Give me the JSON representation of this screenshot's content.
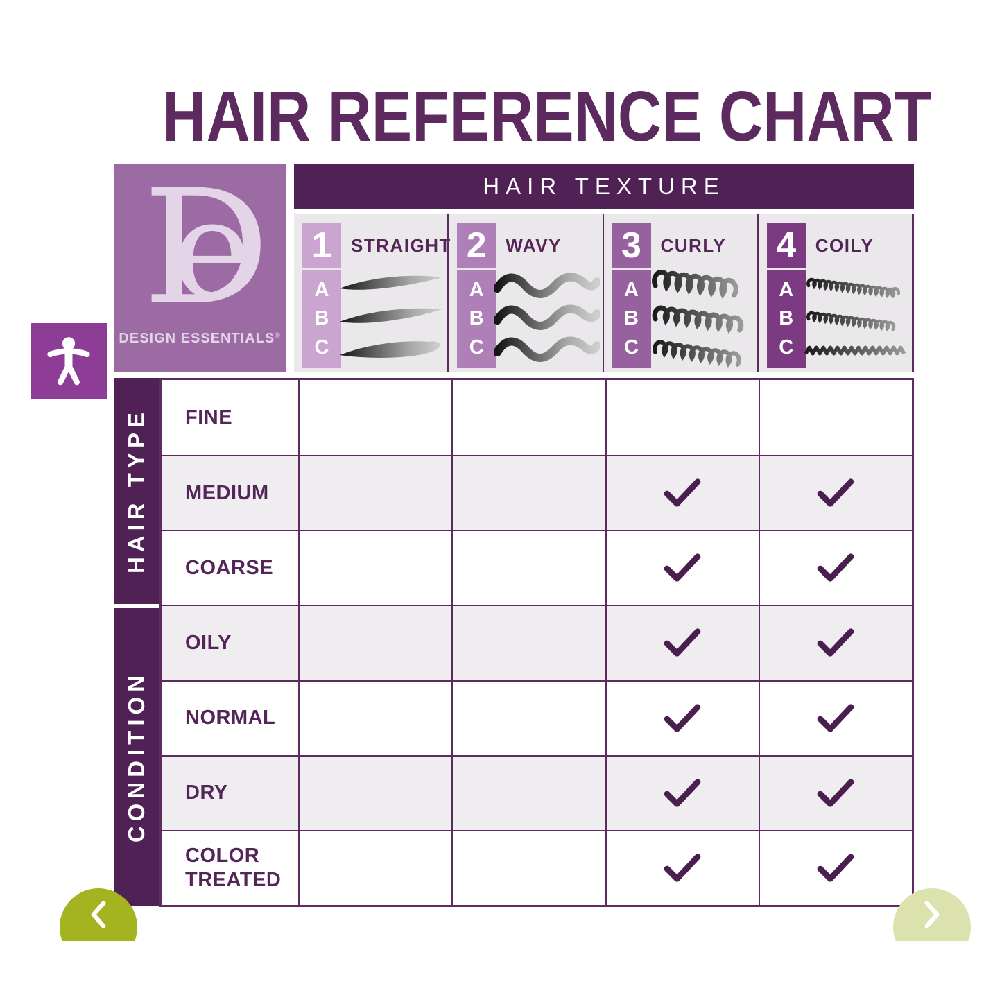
{
  "title": "HAIR REFERENCE CHART",
  "brand": {
    "monogram_d": "D",
    "monogram_e": "e",
    "name": "DESIGN ESSENTIALS",
    "registered": "®"
  },
  "table": {
    "header": "HAIR TEXTURE",
    "textures": [
      {
        "number": "1",
        "label": "STRAIGHT",
        "letters": [
          "A",
          "B",
          "C"
        ]
      },
      {
        "number": "2",
        "label": "WAVY",
        "letters": [
          "A",
          "B",
          "C"
        ]
      },
      {
        "number": "3",
        "label": "CURLY",
        "letters": [
          "A",
          "B",
          "C"
        ]
      },
      {
        "number": "4",
        "label": "COILY",
        "letters": [
          "A",
          "B",
          "C"
        ]
      }
    ],
    "groups": [
      {
        "label": "HAIR TYPE"
      },
      {
        "label": "CONDITION"
      }
    ],
    "rows": [
      {
        "label": "FINE",
        "group": "HAIR TYPE",
        "checks": [
          false,
          false,
          false,
          false
        ]
      },
      {
        "label": "MEDIUM",
        "group": "HAIR TYPE",
        "checks": [
          false,
          false,
          true,
          true
        ]
      },
      {
        "label": "COARSE",
        "group": "HAIR TYPE",
        "checks": [
          false,
          false,
          true,
          true
        ]
      },
      {
        "label": "OILY",
        "group": "CONDITION",
        "checks": [
          false,
          false,
          true,
          true
        ]
      },
      {
        "label": "NORMAL",
        "group": "CONDITION",
        "checks": [
          false,
          false,
          true,
          true
        ]
      },
      {
        "label": "DRY",
        "group": "CONDITION",
        "checks": [
          false,
          false,
          true,
          true
        ]
      },
      {
        "label": "COLOR TREATED",
        "group": "CONDITION",
        "checks": [
          false,
          false,
          true,
          true
        ]
      }
    ]
  },
  "chart_data": {
    "type": "table",
    "title": "HAIR REFERENCE CHART",
    "column_header_group": "HAIR TEXTURE",
    "columns": [
      "1 STRAIGHT (A/B/C)",
      "2 WAVY (A/B/C)",
      "3 CURLY (A/B/C)",
      "4 COILY (A/B/C)"
    ],
    "row_groups": [
      {
        "group": "HAIR TYPE",
        "rows": [
          "FINE",
          "MEDIUM",
          "COARSE"
        ]
      },
      {
        "group": "CONDITION",
        "rows": [
          "OILY",
          "NORMAL",
          "DRY",
          "COLOR TREATED"
        ]
      }
    ],
    "cells": [
      [
        false,
        false,
        false,
        false
      ],
      [
        false,
        false,
        true,
        true
      ],
      [
        false,
        false,
        true,
        true
      ],
      [
        false,
        false,
        true,
        true
      ],
      [
        false,
        false,
        true,
        true
      ],
      [
        false,
        false,
        true,
        true
      ],
      [
        false,
        false,
        true,
        true
      ]
    ],
    "cell_true_symbol": "✓"
  },
  "icons": {
    "accessibility": "accessibility-person-icon",
    "prev": "chevron-left-icon",
    "next": "chevron-right-icon",
    "check": "check-icon"
  },
  "colors": {
    "accent": "#4f2154",
    "border": "#5e2b60",
    "title": "#5c2a5f",
    "logo_bg": "#9c6ba4",
    "logo_fg": "#e4d4e8",
    "tex_bg": "#eae8eb",
    "shade": "#efedf0",
    "label": "#542658",
    "check": "#4b1e50",
    "access_bg": "#8e3d97",
    "nav_prev": "#a3b420",
    "nav_next": "#dce2ad",
    "badges": [
      "#c9a5cf",
      "#af80b8",
      "#96619e",
      "#7b3a81"
    ]
  }
}
